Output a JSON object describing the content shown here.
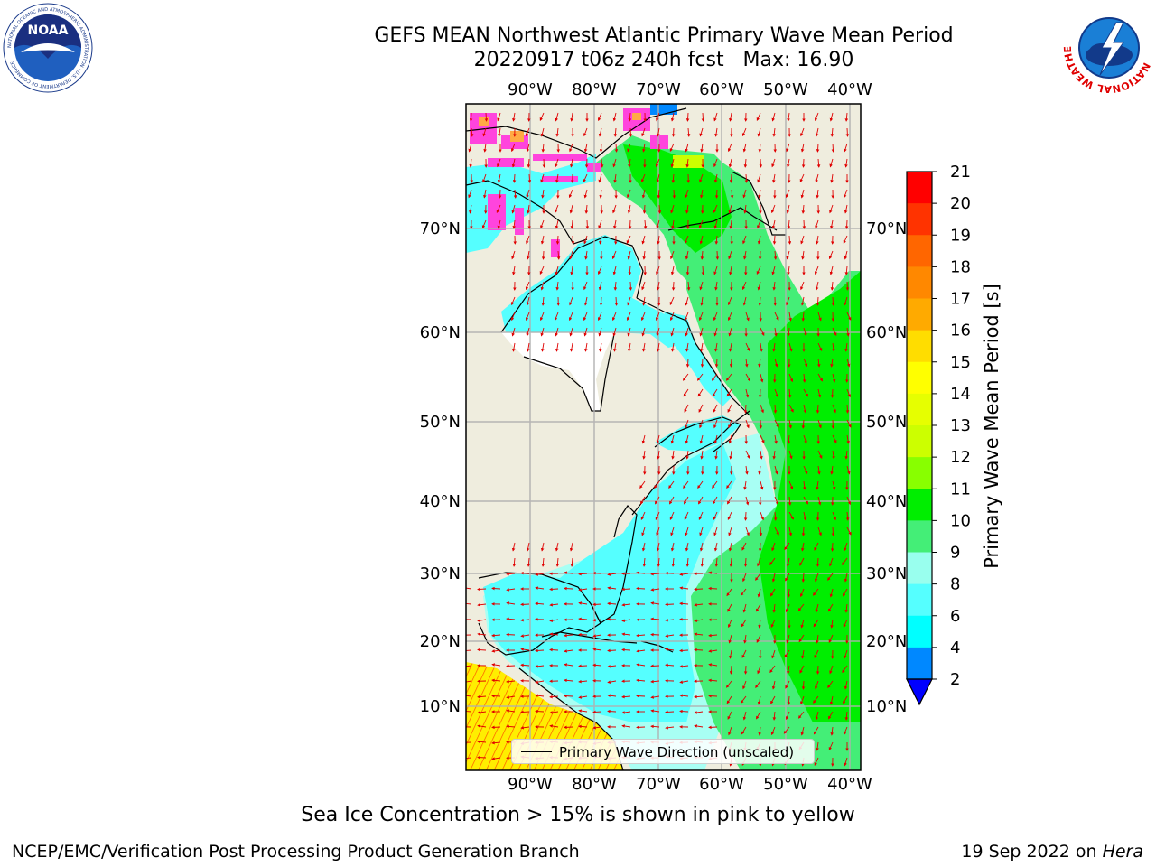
{
  "title": {
    "line1": "GEFS MEAN Northwest Atlantic Primary Wave Mean Period",
    "line2": "20220917 t06z 240h fcst   Max: 16.90"
  },
  "map": {
    "lon_labels": [
      "90°W",
      "80°W",
      "70°W",
      "60°W",
      "50°W",
      "40°W"
    ],
    "lat_labels": [
      "70°N",
      "60°N",
      "50°N",
      "40°N",
      "30°N",
      "20°N",
      "10°N"
    ],
    "land_color": "#efedde",
    "grid_color": "#b0b0b0",
    "arrow_color": "#e00000"
  },
  "legend": {
    "label": "Primary Wave Direction (unscaled)"
  },
  "colorbar": {
    "label": "Primary Wave Mean Period [s]",
    "ticks": [
      "21",
      "20",
      "19",
      "18",
      "17",
      "16",
      "15",
      "14",
      "13",
      "12",
      "11",
      "10",
      "9",
      "8",
      "6",
      "4",
      "2"
    ],
    "colors": [
      "#ff0000",
      "#ff3300",
      "#ff6600",
      "#ff8800",
      "#ffaa00",
      "#ffdd00",
      "#ffff00",
      "#e6ff00",
      "#ccff00",
      "#88ff00",
      "#00ee00",
      "#44ee77",
      "#99ffee",
      "#55ffff",
      "#00ffff",
      "#0088ff",
      "#0000ff"
    ]
  },
  "caption": "Sea Ice Concentration > 15% is shown in pink to yellow",
  "footer": {
    "left": "NCEP/EMC/Verification Post Processing Product Generation Branch",
    "right_date": "19 Sep 2022 on ",
    "right_host": "Hera"
  },
  "logos": {
    "noaa_text": "NOAA",
    "noaa_ring": "NATIONAL OCEANIC AND ATMOSPHERIC ADMINISTRATION · U.S. DEPARTMENT OF COMMERCE",
    "nws_ring": "NATIONAL WEATHER SERVICE"
  }
}
